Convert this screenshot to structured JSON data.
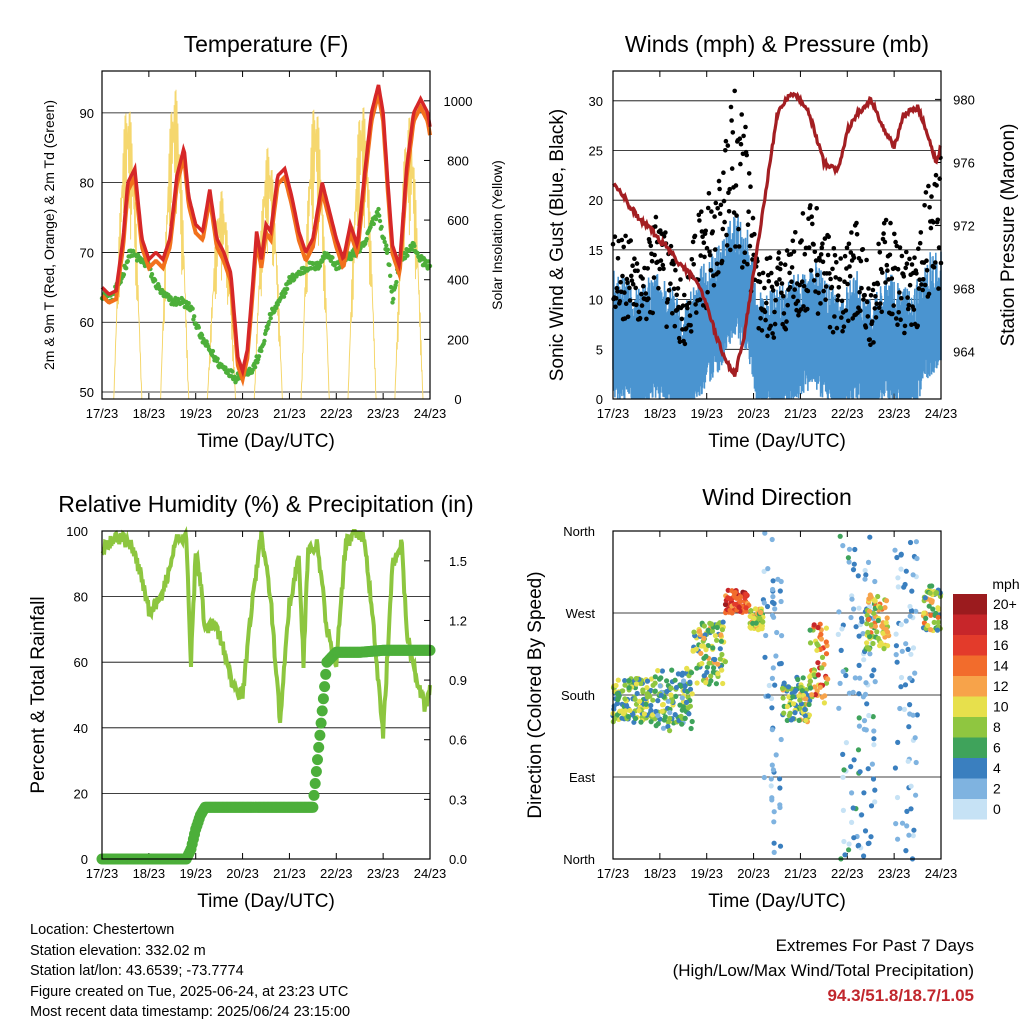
{
  "info": {
    "location": "Location: Chestertown",
    "elevation": "Station elevation: 332.02 m",
    "latlon": "Station lat/lon: 43.6539; -73.7774",
    "created": "Figure created on Tue, 2025-06-24, at 23:23 UTC",
    "latest": "Most recent data timestamp: 2025/06/24 23:15:00"
  },
  "extremes": {
    "title": "Extremes For Past 7 Days",
    "subtitle": "(High/Low/Max Wind/Total Precipitation)",
    "values": "94.3/51.8/18.7/1.05"
  },
  "colors": {
    "red": "#d62728",
    "orange": "#f2711c",
    "green": "#4daf3a",
    "yellow": "#f5d76e",
    "blue": "#4a94d0",
    "black": "#000000",
    "maroon": "#a31e22",
    "rh": "#8dc63f",
    "precip": "#4caf3a"
  },
  "chart_data": [
    {
      "type": "line",
      "title": "Temperature (F)",
      "xlabel": "Time (Day/UTC)",
      "ylabel": "2m & 9m T (Red, Orange) & 2m Td (Green)",
      "y2label": "Solar Insolation (Yellow)",
      "x_ticks": [
        "17/23",
        "18/23",
        "19/23",
        "20/23",
        "21/23",
        "22/23",
        "23/23",
        "24/23"
      ],
      "ylim": [
        49,
        96
      ],
      "y_ticks": [
        50,
        60,
        70,
        80,
        90
      ],
      "y2lim": [
        0,
        1100
      ],
      "y2_ticks": [
        0,
        200,
        400,
        600,
        800,
        1000
      ],
      "grid": true,
      "series": [
        {
          "key": "temp",
          "x": [
            0,
            0.15,
            0.3,
            0.45,
            0.55,
            0.7,
            0.85,
            1.0,
            1.15,
            1.3,
            1.45,
            1.6,
            1.75,
            1.85,
            2.0,
            2.15,
            2.3,
            2.45,
            2.6,
            2.75,
            2.9,
            3.0,
            3.1,
            3.2,
            3.3,
            3.4,
            3.5,
            3.6,
            3.75,
            3.9,
            4.05,
            4.2,
            4.35,
            4.5,
            4.7,
            4.85,
            5.0,
            5.15,
            5.3,
            5.45,
            5.6,
            5.75,
            5.9,
            6.0,
            6.1,
            6.2,
            6.35,
            6.5,
            6.65,
            6.8,
            6.95,
            7.0
          ],
          "values": [
            65,
            64,
            64.5,
            72,
            80,
            82,
            72,
            69,
            70,
            69,
            72,
            81,
            85,
            78,
            74,
            73,
            79,
            72,
            70,
            67,
            55,
            53,
            56,
            64,
            73,
            69,
            74,
            73,
            81,
            82,
            78,
            73,
            70,
            72,
            80,
            76,
            72,
            69,
            74,
            71,
            81,
            90,
            94,
            90,
            80,
            71,
            68,
            82,
            90,
            92,
            90,
            88
          ]
        },
        {
          "key": "dewpoint",
          "x": [
            0,
            0.2,
            0.4,
            0.6,
            0.8,
            1.0,
            1.1,
            1.3,
            1.5,
            1.7,
            1.9,
            2.1,
            2.3,
            2.5,
            2.7,
            2.85,
            3.0,
            3.2,
            3.4,
            3.6,
            3.8,
            4.0,
            4.2,
            4.4,
            4.6,
            4.8,
            5.0,
            5.2,
            5.4,
            5.6,
            5.75,
            5.9,
            6.0,
            6.1,
            6.2,
            6.35,
            6.5,
            6.65,
            6.8,
            7.0
          ],
          "values": [
            64,
            63.5,
            66,
            70,
            69,
            68,
            66,
            64,
            63,
            63,
            62,
            58,
            56,
            54,
            53,
            52,
            53,
            53,
            56,
            61,
            63,
            66,
            67,
            68,
            68,
            70,
            68,
            69,
            70,
            71,
            74,
            76,
            72,
            70,
            63,
            69,
            70,
            71,
            69,
            68
          ]
        },
        {
          "key": "solar",
          "peak_days": [
            0.55,
            1.55,
            2.55,
            3.55,
            4.55,
            5.55,
            6.55
          ],
          "peak_values": [
            1000,
            1050,
            700,
            850,
            1000,
            1000,
            950
          ]
        }
      ]
    },
    {
      "type": "scatter",
      "title": "Winds (mph) & Pressure (mb)",
      "xlabel": "Time (Day/UTC)",
      "ylabel": "Sonic Wind & Gust (Blue, Black)",
      "y2label": "Station Pressure (Maroon)",
      "x_ticks": [
        "17/23",
        "18/23",
        "19/23",
        "20/23",
        "21/23",
        "22/23",
        "23/23",
        "24/23"
      ],
      "ylim": [
        0,
        33
      ],
      "y_ticks": [
        0,
        5,
        10,
        15,
        20,
        25,
        30
      ],
      "y2lim": [
        961,
        981.8
      ],
      "y2_ticks": [
        964,
        968,
        972,
        976,
        980
      ],
      "grid": true,
      "series": [
        {
          "key": "pressure",
          "x": [
            0,
            0.2,
            0.4,
            0.6,
            0.8,
            1.0,
            1.2,
            1.4,
            1.6,
            1.8,
            2.0,
            2.2,
            2.4,
            2.5,
            2.6,
            2.8,
            3.0,
            3.2,
            3.5,
            3.8,
            4.0,
            4.2,
            4.5,
            4.8,
            5.0,
            5.2,
            5.5,
            5.8,
            6.0,
            6.2,
            6.5,
            6.7,
            6.9,
            7.0
          ],
          "values": [
            974.6,
            974,
            973,
            972.3,
            971.8,
            971,
            970.5,
            969.6,
            969,
            968.5,
            967,
            965,
            963.5,
            963,
            962.5,
            965,
            969,
            973,
            979,
            980.5,
            980,
            979,
            976,
            975.5,
            978,
            979,
            980,
            978,
            977,
            979,
            979.5,
            978,
            976,
            977
          ]
        },
        {
          "key": "wind",
          "x": [
            0,
            0.3,
            0.6,
            0.9,
            1.2,
            1.5,
            1.8,
            2.0,
            2.3,
            2.6,
            2.9,
            3.1,
            3.4,
            3.7,
            4.0,
            4.3,
            4.6,
            4.9,
            5.2,
            5.5,
            5.8,
            6.1,
            6.4,
            6.7,
            7.0
          ],
          "values": [
            6,
            5,
            4.5,
            6,
            5,
            2.5,
            6,
            7,
            9,
            12,
            10,
            4,
            4,
            5,
            6,
            7,
            5,
            4,
            6,
            3,
            6,
            5,
            4,
            8,
            9
          ]
        }
      ]
    },
    {
      "type": "line",
      "title": "Relative Humidity (%) & Precipitation (in)",
      "xlabel": "Time (Day/UTC)",
      "ylabel": "Percent & Total Rainfall",
      "x_ticks": [
        "17/23",
        "18/23",
        "19/23",
        "20/23",
        "21/23",
        "22/23",
        "23/23",
        "24/23"
      ],
      "ylim": [
        0,
        100
      ],
      "y_ticks": [
        0,
        20,
        40,
        60,
        80,
        100
      ],
      "y2lim": [
        0,
        1.65
      ],
      "y2_ticks": [
        "0.0",
        "0.3",
        "0.6",
        "0.9",
        "1.2",
        "1.5"
      ],
      "grid": true,
      "series": [
        {
          "key": "rh",
          "x": [
            0,
            0.2,
            0.4,
            0.6,
            0.8,
            1.0,
            1.2,
            1.4,
            1.6,
            1.8,
            1.9,
            2.0,
            2.1,
            2.2,
            2.4,
            2.6,
            2.8,
            3.0,
            3.2,
            3.4,
            3.6,
            3.7,
            3.8,
            4.0,
            4.2,
            4.3,
            4.4,
            4.6,
            4.8,
            5.0,
            5.2,
            5.4,
            5.6,
            5.8,
            6.0,
            6.2,
            6.4,
            6.5,
            6.7,
            6.9,
            7.0
          ],
          "values": [
            95,
            97,
            98,
            96,
            88,
            76,
            78,
            86,
            98,
            98,
            60,
            94,
            85,
            70,
            72,
            64,
            52,
            50,
            78,
            99,
            80,
            60,
            42,
            78,
            92,
            60,
            94,
            96,
            70,
            60,
            96,
            100,
            98,
            70,
            38,
            90,
            96,
            70,
            55,
            46,
            52
          ]
        },
        {
          "key": "precip",
          "x": [
            0,
            1.8,
            1.9,
            2.0,
            2.1,
            2.2,
            4.5,
            4.6,
            4.8,
            5.0,
            5.5,
            6.0,
            7.0
          ],
          "values": [
            0,
            0,
            0.05,
            0.15,
            0.22,
            0.26,
            0.26,
            0.5,
            0.99,
            1.04,
            1.04,
            1.05,
            1.05
          ]
        }
      ]
    },
    {
      "type": "scatter",
      "title": "Wind Direction",
      "xlabel": "Time (Day/UTC)",
      "ylabel": "Direction (Colored By Speed)",
      "x_ticks": [
        "17/23",
        "18/23",
        "19/23",
        "20/23",
        "21/23",
        "22/23",
        "23/23",
        "24/23"
      ],
      "y_ticks": [
        "North",
        "East",
        "South",
        "West",
        "North"
      ],
      "ylim": [
        0,
        360
      ],
      "grid": true,
      "legend_title": "mph",
      "legend_labels": [
        "20+",
        "18",
        "16",
        "14",
        "12",
        "10",
        "8",
        "6",
        "4",
        "2",
        "0"
      ],
      "legend_colors": [
        "#9b1b1e",
        "#c7262a",
        "#e33b2b",
        "#f26c2c",
        "#f7a34a",
        "#e7e04c",
        "#8fc640",
        "#3fa35b",
        "#3a7fbf",
        "#7fb3e0",
        "#c6e2f5"
      ],
      "clusters": [
        {
          "x0": 0,
          "x1": 0.9,
          "dir_min": 150,
          "dir_max": 200,
          "spd_min": 3,
          "spd_max": 11
        },
        {
          "x0": 0.9,
          "x1": 1.7,
          "dir_min": 140,
          "dir_max": 210,
          "spd_min": 2,
          "spd_max": 10
        },
        {
          "x0": 1.7,
          "x1": 2.4,
          "dir_min": 190,
          "dir_max": 260,
          "spd_min": 4,
          "spd_max": 12
        },
        {
          "x0": 2.4,
          "x1": 2.9,
          "dir_min": 270,
          "dir_max": 295,
          "spd_min": 12,
          "spd_max": 20
        },
        {
          "x0": 2.9,
          "x1": 3.2,
          "dir_min": 250,
          "dir_max": 275,
          "spd_min": 6,
          "spd_max": 12
        },
        {
          "x0": 3.2,
          "x1": 3.6,
          "dir_min": 0,
          "dir_max": 360,
          "spd_min": 0,
          "spd_max": 5
        },
        {
          "x0": 3.6,
          "x1": 4.2,
          "dir_min": 150,
          "dir_max": 200,
          "spd_min": 3,
          "spd_max": 12
        },
        {
          "x0": 4.2,
          "x1": 4.6,
          "dir_min": 170,
          "dir_max": 260,
          "spd_min": 6,
          "spd_max": 18
        },
        {
          "x0": 4.8,
          "x1": 5.6,
          "dir_min": 0,
          "dir_max": 360,
          "spd_min": 0,
          "spd_max": 6
        },
        {
          "x0": 5.4,
          "x1": 5.9,
          "dir_min": 230,
          "dir_max": 290,
          "spd_min": 6,
          "spd_max": 14
        },
        {
          "x0": 6.0,
          "x1": 6.5,
          "dir_min": 0,
          "dir_max": 350,
          "spd_min": 0,
          "spd_max": 5
        },
        {
          "x0": 6.6,
          "x1": 7.0,
          "dir_min": 250,
          "dir_max": 300,
          "spd_min": 4,
          "spd_max": 14
        }
      ]
    }
  ]
}
